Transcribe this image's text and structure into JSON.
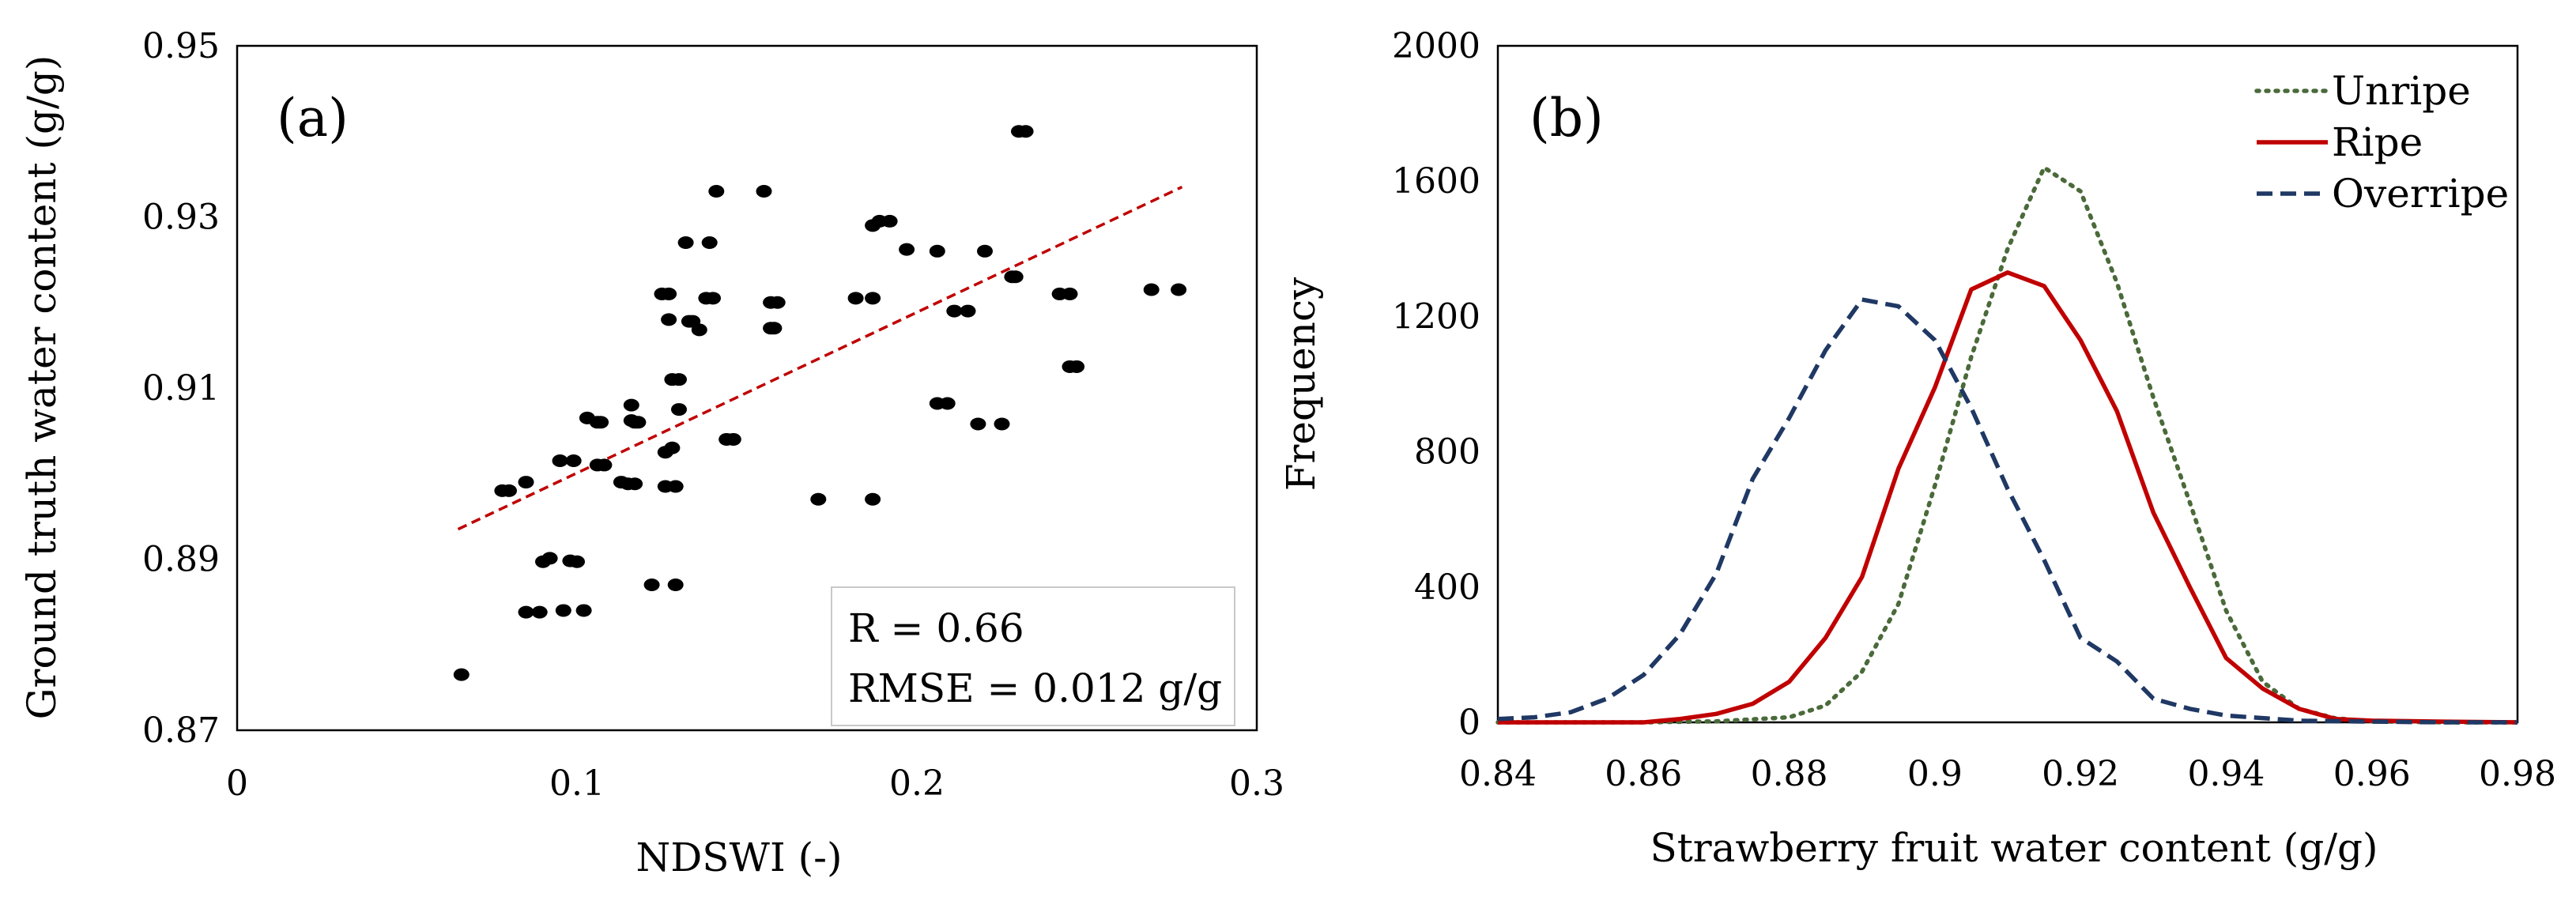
{
  "chart_data": [
    {
      "type": "scatter",
      "panel_label": "(a)",
      "xlabel": "NDSWI (-)",
      "ylabel": "Ground truth water content (g/g)",
      "xlim": [
        0,
        0.3
      ],
      "ylim": [
        0.87,
        0.95
      ],
      "x_ticks": [
        0,
        0.1,
        0.2,
        0.3
      ],
      "x_tick_labels": [
        "0",
        "0.1",
        "0.2",
        "0.3"
      ],
      "y_ticks": [
        0.87,
        0.89,
        0.91,
        0.93,
        0.95
      ],
      "y_tick_labels": [
        "0.87",
        "0.89",
        "0.91",
        "0.93",
        "0.95"
      ],
      "points": [
        [
          0.066,
          0.8765
        ],
        [
          0.078,
          0.898
        ],
        [
          0.08,
          0.898
        ],
        [
          0.085,
          0.899
        ],
        [
          0.085,
          0.8838
        ],
        [
          0.089,
          0.8838
        ],
        [
          0.09,
          0.8897
        ],
        [
          0.092,
          0.8901
        ],
        [
          0.095,
          0.9015
        ],
        [
          0.099,
          0.9015
        ],
        [
          0.096,
          0.884
        ],
        [
          0.098,
          0.8898
        ],
        [
          0.1,
          0.8897
        ],
        [
          0.102,
          0.884
        ],
        [
          0.103,
          0.9065
        ],
        [
          0.106,
          0.906
        ],
        [
          0.107,
          0.906
        ],
        [
          0.106,
          0.901
        ],
        [
          0.108,
          0.901
        ],
        [
          0.113,
          0.899
        ],
        [
          0.115,
          0.8988
        ],
        [
          0.117,
          0.8988
        ],
        [
          0.116,
          0.908
        ],
        [
          0.116,
          0.9062
        ],
        [
          0.117,
          0.906
        ],
        [
          0.118,
          0.906
        ],
        [
          0.122,
          0.887
        ],
        [
          0.129,
          0.887
        ],
        [
          0.125,
          0.921
        ],
        [
          0.127,
          0.921
        ],
        [
          0.127,
          0.918
        ],
        [
          0.126,
          0.9025
        ],
        [
          0.128,
          0.903
        ],
        [
          0.126,
          0.8985
        ],
        [
          0.129,
          0.8985
        ],
        [
          0.128,
          0.911
        ],
        [
          0.13,
          0.911
        ],
        [
          0.13,
          0.9075
        ],
        [
          0.132,
          0.927
        ],
        [
          0.133,
          0.9178
        ],
        [
          0.134,
          0.9178
        ],
        [
          0.136,
          0.9168
        ],
        [
          0.138,
          0.9205
        ],
        [
          0.14,
          0.9205
        ],
        [
          0.139,
          0.927
        ],
        [
          0.141,
          0.933
        ],
        [
          0.144,
          0.904
        ],
        [
          0.146,
          0.904
        ],
        [
          0.155,
          0.933
        ],
        [
          0.157,
          0.917
        ],
        [
          0.158,
          0.917
        ],
        [
          0.157,
          0.92
        ],
        [
          0.159,
          0.92
        ],
        [
          0.171,
          0.897
        ],
        [
          0.182,
          0.9205
        ],
        [
          0.187,
          0.9205
        ],
        [
          0.187,
          0.897
        ],
        [
          0.187,
          0.929
        ],
        [
          0.189,
          0.9295
        ],
        [
          0.192,
          0.9295
        ],
        [
          0.197,
          0.9262
        ],
        [
          0.206,
          0.926
        ],
        [
          0.206,
          0.9082
        ],
        [
          0.209,
          0.9082
        ],
        [
          0.211,
          0.919
        ],
        [
          0.215,
          0.919
        ],
        [
          0.218,
          0.9058
        ],
        [
          0.22,
          0.926
        ],
        [
          0.225,
          0.9058
        ],
        [
          0.228,
          0.923
        ],
        [
          0.229,
          0.923
        ],
        [
          0.23,
          0.94
        ],
        [
          0.232,
          0.94
        ],
        [
          0.242,
          0.921
        ],
        [
          0.245,
          0.921
        ],
        [
          0.245,
          0.9125
        ],
        [
          0.247,
          0.9125
        ],
        [
          0.269,
          0.9215
        ],
        [
          0.277,
          0.9215
        ]
      ],
      "trendline": {
        "x": [
          0.065,
          0.278
        ],
        "y": [
          0.8935,
          0.9335
        ]
      },
      "annotations": {
        "r": "R = 0.66",
        "rmse": "RMSE = 0.012 g/g"
      },
      "colors": {
        "points": "#000000",
        "trendline": "#c00000"
      }
    },
    {
      "type": "line",
      "panel_label": "(b)",
      "xlabel": "Strawberry fruit water content (g/g)",
      "ylabel": "Frequency",
      "xlim": [
        0.84,
        0.98
      ],
      "ylim": [
        0,
        2000
      ],
      "x_ticks": [
        0.84,
        0.86,
        0.88,
        0.9,
        0.92,
        0.94,
        0.96,
        0.98
      ],
      "x_tick_labels": [
        "0.84",
        "0.86",
        "0.88",
        "0.9",
        "0.92",
        "0.94",
        "0.96",
        "0.98"
      ],
      "y_ticks": [
        0,
        400,
        800,
        1200,
        1600,
        2000
      ],
      "y_tick_labels": [
        "0",
        "400",
        "800",
        "1200",
        "1600",
        "2000"
      ],
      "legend_position": "top-right",
      "series": [
        {
          "name": "Unripe",
          "style": "dotted",
          "color": "#4a6a3a",
          "x": [
            0.84,
            0.86,
            0.87,
            0.88,
            0.885,
            0.89,
            0.895,
            0.9,
            0.905,
            0.91,
            0.915,
            0.92,
            0.925,
            0.93,
            0.935,
            0.94,
            0.945,
            0.95,
            0.955,
            0.96,
            0.97,
            0.98
          ],
          "y": [
            0,
            0,
            3,
            15,
            50,
            150,
            350,
            700,
            1080,
            1400,
            1640,
            1570,
            1300,
            960,
            650,
            330,
            120,
            40,
            12,
            3,
            0,
            0
          ]
        },
        {
          "name": "Ripe",
          "style": "solid",
          "color": "#c00000",
          "x": [
            0.84,
            0.86,
            0.865,
            0.87,
            0.875,
            0.88,
            0.885,
            0.89,
            0.895,
            0.9,
            0.905,
            0.91,
            0.915,
            0.92,
            0.925,
            0.93,
            0.935,
            0.94,
            0.945,
            0.95,
            0.955,
            0.96,
            0.97,
            0.98
          ],
          "y": [
            0,
            0,
            10,
            25,
            55,
            120,
            250,
            430,
            750,
            990,
            1280,
            1330,
            1290,
            1130,
            920,
            620,
            400,
            190,
            100,
            40,
            10,
            5,
            2,
            0
          ]
        },
        {
          "name": "Overripe",
          "style": "dashed",
          "color": "#1f3864",
          "x": [
            0.84,
            0.845,
            0.85,
            0.855,
            0.86,
            0.865,
            0.87,
            0.875,
            0.88,
            0.885,
            0.89,
            0.895,
            0.9,
            0.905,
            0.91,
            0.915,
            0.92,
            0.925,
            0.93,
            0.935,
            0.94,
            0.95,
            0.96,
            0.97,
            0.98
          ],
          "y": [
            10,
            15,
            30,
            70,
            140,
            260,
            440,
            720,
            900,
            1100,
            1250,
            1230,
            1130,
            930,
            690,
            480,
            250,
            180,
            70,
            40,
            20,
            5,
            2,
            0,
            0
          ]
        }
      ]
    }
  ]
}
